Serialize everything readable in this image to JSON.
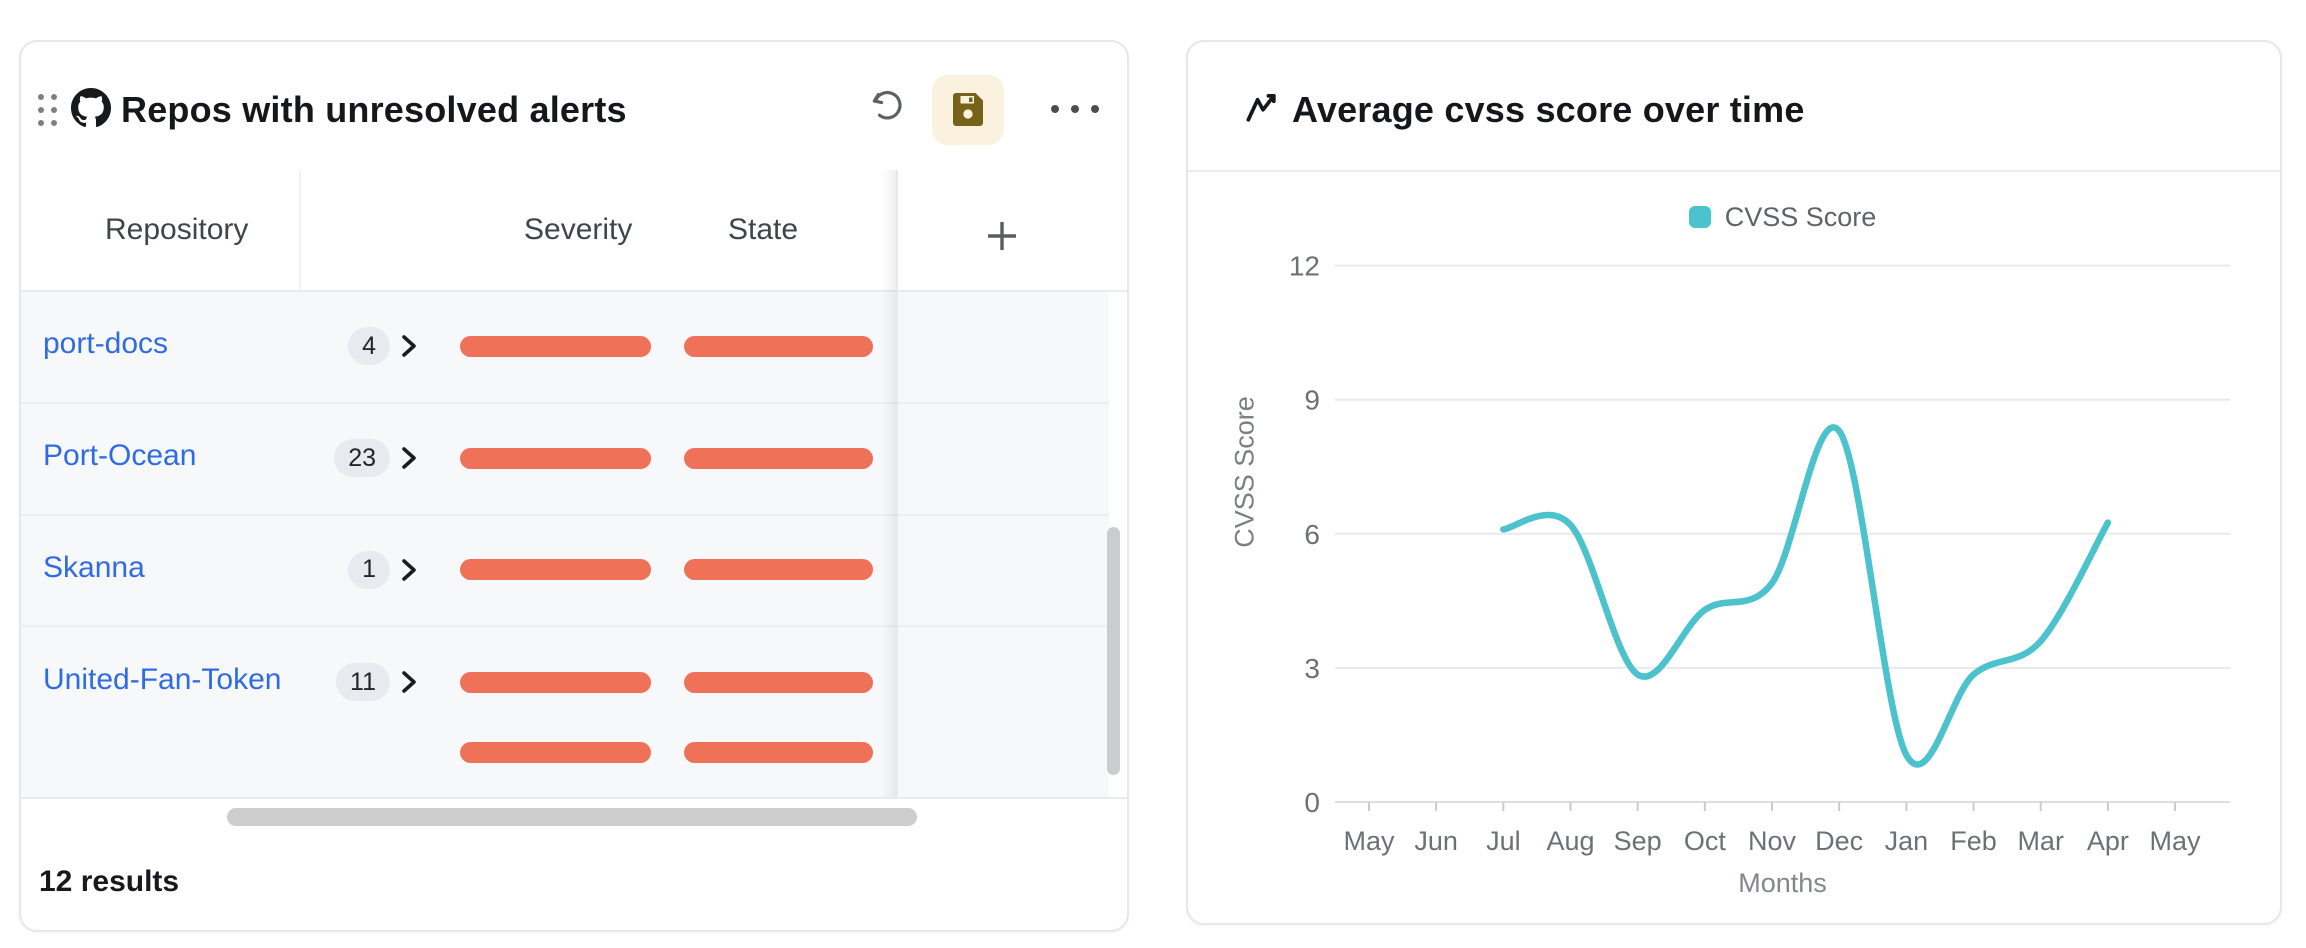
{
  "colors": {
    "accent_teal": "#4cc2cd",
    "bar_orange": "#ee7158",
    "link_blue": "#2f6be4",
    "repo_icon_pink": "#f07dc7",
    "save_button_bg": "#faf2de",
    "save_icon": "#77621a",
    "row_bg": "#f7f8f9",
    "badge_bg": "#e7eaef"
  },
  "left_card": {
    "title": "Repos with unresolved alerts",
    "toolbar": {
      "undo_icon": "undo-icon",
      "save_icon": "save-icon",
      "more_icon": "ellipsis-icon"
    },
    "table": {
      "columns": [
        {
          "label": "Repository",
          "icon": "cube-icon",
          "sortable": true
        },
        {
          "label": "Severity",
          "icon": "circle-dot-icon"
        },
        {
          "label": "State",
          "icon": "circle-dot-icon"
        }
      ],
      "add_column_icon": "plus-icon",
      "rows": [
        {
          "repository": "port-docs",
          "alert_count": "4",
          "bar_lines": 1
        },
        {
          "repository": "Port-Ocean",
          "alert_count": "23",
          "bar_lines": 1
        },
        {
          "repository": "Skanna",
          "alert_count": "1",
          "bar_lines": 1
        },
        {
          "repository": "United-Fan-Token",
          "alert_count": "11",
          "bar_lines": 2
        }
      ],
      "footer": "12 results"
    }
  },
  "right_card": {
    "title": "Average cvss score over time",
    "legend": {
      "label": "CVSS Score",
      "color": "#4cc2cd"
    }
  },
  "chart_data": {
    "type": "line",
    "title": "Average cvss score over time",
    "categories": [
      "May",
      "Jun",
      "Jul",
      "Aug",
      "Sep",
      "Oct",
      "Nov",
      "Dec",
      "Jan",
      "Feb",
      "Mar",
      "Apr",
      "May"
    ],
    "series": [
      {
        "name": "CVSS Score",
        "color": "#4cc2cd",
        "values": [
          null,
          null,
          6.1,
          6.2,
          2.85,
          4.3,
          4.9,
          8.3,
          1.05,
          2.85,
          3.6,
          6.25,
          null
        ]
      }
    ],
    "xlabel": "Months",
    "ylabel": "CVSS Score",
    "ylim": [
      0,
      12
    ],
    "yticks": [
      0,
      3,
      6,
      9,
      12
    ],
    "grid": true,
    "legend_position": "top"
  }
}
